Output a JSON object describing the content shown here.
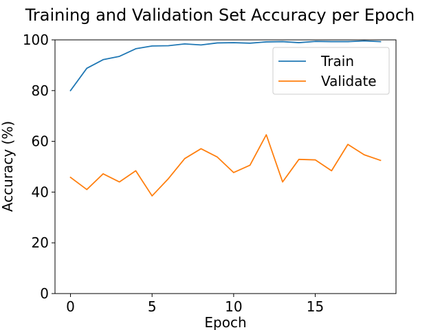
{
  "chart_data": {
    "type": "line",
    "title": "Training and Validation Set Accuracy per Epoch",
    "xlabel": "Epoch",
    "ylabel": "Accuracy (%)",
    "xlim": [
      -0.95,
      19.95
    ],
    "ylim": [
      0,
      100
    ],
    "xticks": [
      0,
      5,
      10,
      15
    ],
    "yticks": [
      0,
      20,
      40,
      60,
      80,
      100
    ],
    "grid": false,
    "legend": "top-right",
    "x": [
      0,
      1,
      2,
      3,
      4,
      5,
      6,
      7,
      8,
      9,
      10,
      11,
      12,
      13,
      14,
      15,
      16,
      17,
      18,
      19
    ],
    "series": [
      {
        "name": "Train",
        "color": "#1f77b4",
        "values": [
          80.0,
          88.8,
          92.2,
          93.5,
          96.5,
          97.6,
          97.7,
          98.4,
          98.0,
          98.8,
          98.9,
          98.7,
          99.2,
          99.3,
          98.9,
          99.4,
          99.3,
          99.3,
          99.6,
          99.3
        ]
      },
      {
        "name": "Validate",
        "color": "#ff7f0e",
        "values": [
          45.8,
          41.0,
          47.2,
          44.0,
          48.4,
          38.5,
          45.3,
          53.2,
          57.1,
          53.8,
          47.7,
          50.6,
          62.6,
          44.0,
          52.9,
          52.7,
          48.4,
          58.8,
          54.7,
          52.5
        ]
      }
    ]
  }
}
